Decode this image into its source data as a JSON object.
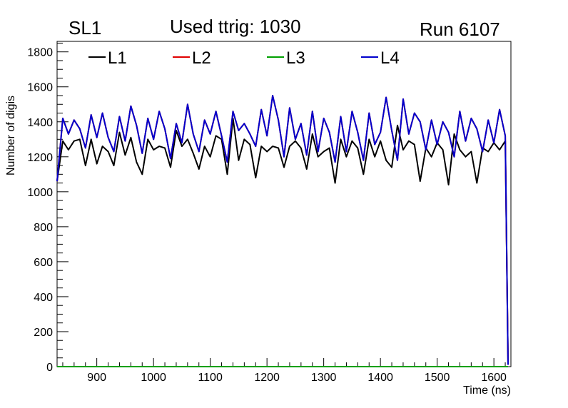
{
  "header": {
    "superlayer": "SL1",
    "title": "Used ttrig: 1030",
    "run": "Run 6107"
  },
  "chart_data": {
    "type": "line",
    "xlabel": "Time (ns)",
    "ylabel": "Number of digis",
    "xlim": [
      830,
      1630
    ],
    "ylim": [
      0,
      1860
    ],
    "x_ticks": [
      900,
      1000,
      1100,
      1200,
      1300,
      1400,
      1500,
      1600
    ],
    "y_ticks": [
      0,
      200,
      400,
      600,
      800,
      1000,
      1200,
      1400,
      1600,
      1800
    ],
    "grid": false,
    "legend_position": "top",
    "x": [
      830,
      840,
      850,
      860,
      870,
      880,
      890,
      900,
      910,
      920,
      930,
      940,
      950,
      960,
      970,
      980,
      990,
      1000,
      1010,
      1020,
      1030,
      1040,
      1050,
      1060,
      1070,
      1080,
      1090,
      1100,
      1110,
      1120,
      1130,
      1140,
      1150,
      1160,
      1170,
      1180,
      1190,
      1200,
      1210,
      1220,
      1230,
      1240,
      1250,
      1260,
      1270,
      1280,
      1290,
      1300,
      1310,
      1320,
      1330,
      1340,
      1350,
      1360,
      1370,
      1380,
      1390,
      1400,
      1410,
      1420,
      1430,
      1440,
      1450,
      1460,
      1470,
      1480,
      1490,
      1500,
      1510,
      1520,
      1530,
      1540,
      1550,
      1560,
      1570,
      1580,
      1590,
      1600,
      1610,
      1620,
      1625
    ],
    "series": [
      {
        "name": "L1",
        "color": "#000000",
        "values": [
          1060,
          1290,
          1240,
          1290,
          1300,
          1150,
          1300,
          1160,
          1260,
          1230,
          1150,
          1340,
          1210,
          1310,
          1170,
          1100,
          1300,
          1240,
          1260,
          1250,
          1140,
          1350,
          1260,
          1300,
          1220,
          1130,
          1260,
          1200,
          1320,
          1300,
          1100,
          1420,
          1180,
          1300,
          1270,
          1080,
          1260,
          1230,
          1260,
          1250,
          1140,
          1260,
          1290,
          1250,
          1130,
          1330,
          1200,
          1230,
          1250,
          1050,
          1300,
          1200,
          1290,
          1250,
          1100,
          1300,
          1200,
          1290,
          1180,
          1140,
          1380,
          1240,
          1290,
          1270,
          1060,
          1250,
          1200,
          1280,
          1240,
          1040,
          1330,
          1240,
          1200,
          1230,
          1050,
          1250,
          1230,
          1280,
          1240,
          1290,
          20
        ]
      },
      {
        "name": "L2",
        "color": "#e00000",
        "values": [
          1060,
          1420,
          1330,
          1410,
          1360,
          1250,
          1440,
          1310,
          1450,
          1310,
          1230,
          1430,
          1290,
          1490,
          1380,
          1220,
          1420,
          1300,
          1460,
          1360,
          1190,
          1390,
          1280,
          1500,
          1330,
          1230,
          1410,
          1330,
          1460,
          1320,
          1170,
          1460,
          1350,
          1390,
          1330,
          1260,
          1470,
          1320,
          1550,
          1410,
          1200,
          1480,
          1300,
          1390,
          1210,
          1460,
          1230,
          1420,
          1340,
          1170,
          1430,
          1230,
          1460,
          1340,
          1180,
          1450,
          1270,
          1340,
          1540,
          1350,
          1180,
          1530,
          1330,
          1450,
          1400,
          1240,
          1410,
          1270,
          1400,
          1340,
          1200,
          1460,
          1290,
          1420,
          1360,
          1230,
          1410,
          1280,
          1470,
          1320,
          10
        ]
      },
      {
        "name": "L3",
        "color": "#00a000",
        "values": [
          0,
          0,
          0,
          0,
          0,
          0,
          0,
          0,
          0,
          0,
          0,
          0,
          0,
          0,
          0,
          0,
          0,
          0,
          0,
          0,
          0,
          0,
          0,
          0,
          0,
          0,
          0,
          0,
          0,
          0,
          0,
          0,
          0,
          0,
          0,
          0,
          0,
          0,
          0,
          0,
          0,
          0,
          0,
          0,
          0,
          0,
          0,
          0,
          0,
          0,
          0,
          0,
          0,
          0,
          0,
          0,
          0,
          0,
          0,
          0,
          0,
          0,
          0,
          0,
          0,
          0,
          0,
          0,
          0,
          0,
          0,
          0,
          0,
          0,
          0,
          0,
          0,
          0,
          0,
          0,
          0
        ]
      },
      {
        "name": "L4",
        "color": "#0000cc",
        "values": [
          1060,
          1420,
          1330,
          1410,
          1360,
          1250,
          1440,
          1310,
          1450,
          1310,
          1230,
          1430,
          1290,
          1490,
          1380,
          1220,
          1420,
          1300,
          1460,
          1360,
          1190,
          1390,
          1280,
          1500,
          1330,
          1230,
          1410,
          1330,
          1460,
          1320,
          1170,
          1460,
          1350,
          1390,
          1330,
          1260,
          1470,
          1320,
          1550,
          1410,
          1200,
          1480,
          1300,
          1390,
          1210,
          1460,
          1230,
          1420,
          1340,
          1170,
          1430,
          1230,
          1460,
          1340,
          1180,
          1450,
          1270,
          1340,
          1540,
          1350,
          1180,
          1530,
          1330,
          1450,
          1400,
          1240,
          1410,
          1270,
          1400,
          1340,
          1200,
          1460,
          1290,
          1420,
          1360,
          1230,
          1410,
          1280,
          1470,
          1320,
          10
        ]
      }
    ]
  }
}
